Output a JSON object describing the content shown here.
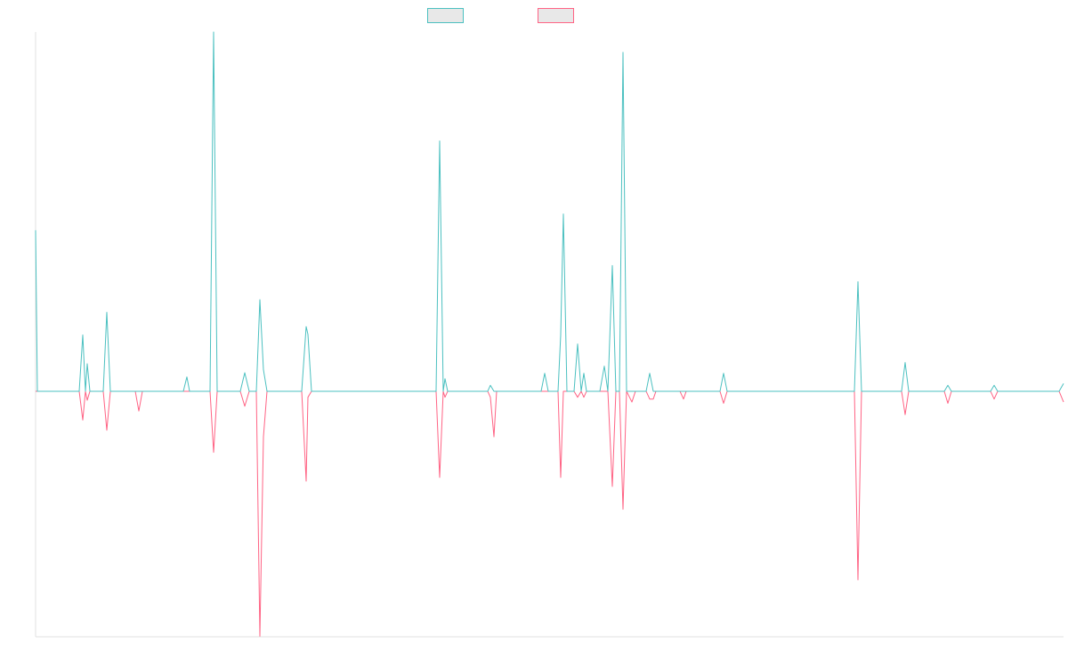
{
  "chart_data": {
    "type": "line",
    "x": [
      0,
      2,
      49,
      53,
      56,
      58,
      61,
      76,
      80,
      84,
      112,
      116,
      120,
      166,
      170,
      173,
      196,
      200,
      204,
      230,
      235,
      240,
      248,
      252,
      256,
      260,
      299,
      304,
      306,
      310,
      450,
      454,
      458,
      460,
      463,
      508,
      511,
      515,
      518,
      568,
      572,
      576,
      587,
      590,
      593,
      597,
      605,
      609,
      613,
      616,
      619,
      634,
      639,
      643,
      648,
      652,
      656,
      660,
      664,
      670,
      674,
      686,
      690,
      694,
      697,
      724,
      728,
      731,
      769,
      773,
      777,
      920,
      924,
      928,
      973,
      977,
      981,
      1021,
      1025,
      1029,
      1073,
      1077,
      1081,
      1150,
      1155
    ],
    "xlim": [
      0,
      1155
    ],
    "ylim": [
      -41,
      60
    ],
    "series": [
      {
        "color": "#4bc0c0",
        "values": [
          26.9,
          0,
          0,
          9.4,
          0,
          4.6,
          0,
          0,
          13.2,
          0,
          0,
          0,
          0,
          0,
          2.4,
          0,
          0,
          60,
          0,
          0,
          3.1,
          0,
          0,
          15.3,
          3.6,
          0,
          0,
          10.8,
          9.5,
          0,
          0,
          41.8,
          0,
          2.1,
          0,
          0,
          1,
          0,
          0,
          0,
          3,
          0,
          0,
          9.4,
          29.6,
          0,
          0,
          7.9,
          0,
          3,
          0,
          0,
          4.2,
          0,
          21,
          0,
          0,
          56.6,
          0,
          0,
          0,
          0,
          3,
          0,
          0,
          0,
          0,
          0,
          0,
          3,
          0,
          0,
          18.3,
          0,
          0,
          4.8,
          0,
          0,
          1,
          0,
          0,
          1,
          0,
          0,
          1.3
        ]
      },
      {
        "color": "#ff6384",
        "values": [
          0,
          0,
          0,
          -4.8,
          0,
          -1.5,
          0,
          0,
          -6.5,
          0,
          0,
          -3.3,
          0,
          0,
          0,
          0,
          0,
          -10.2,
          0,
          0,
          -2.5,
          0,
          0,
          -40.9,
          -7.6,
          0,
          0,
          -15,
          -1,
          0,
          0,
          -14.4,
          0,
          -1,
          0,
          0,
          -1,
          -7.6,
          0,
          0,
          0,
          0,
          0,
          -14.4,
          0,
          0,
          0,
          -1,
          0,
          -1,
          0,
          0,
          0,
          0,
          -15.9,
          0,
          0,
          -19.7,
          0,
          -1.8,
          0,
          0,
          -1.3,
          -1.3,
          0,
          0,
          -1.3,
          0,
          0,
          -2,
          0,
          0,
          -31.5,
          0,
          0,
          -3.9,
          0,
          0,
          -2,
          0,
          0,
          -1.3,
          0,
          0,
          -1.8
        ]
      }
    ]
  }
}
